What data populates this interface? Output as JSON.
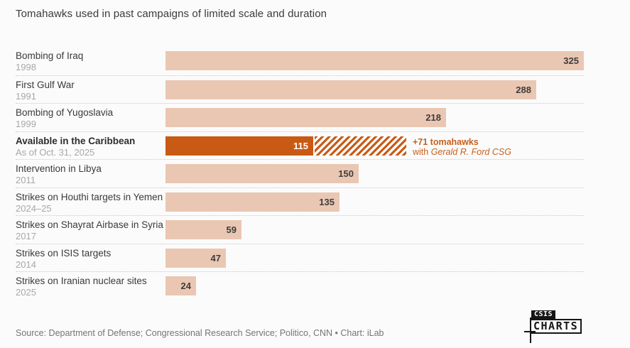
{
  "title": "Tomahawks used in past campaigns of limited scale and duration",
  "chart_data": {
    "type": "bar",
    "orientation": "horizontal",
    "xlim": [
      0,
      325
    ],
    "grid": "dotted row separators",
    "bar_color": "#eac7b2",
    "highlight_color": "#c95a14",
    "value_label_position": "inside-right",
    "rows": [
      {
        "label": "Bombing of Iraq",
        "sublabel": "1998",
        "value": 325
      },
      {
        "label": "First Gulf War",
        "sublabel": "1991",
        "value": 288
      },
      {
        "label": "Bombing of Yugoslavia",
        "sublabel": "1999",
        "value": 218
      },
      {
        "label": "Available in the Caribbean",
        "sublabel": "As of Oct. 31, 2025",
        "value": 115,
        "highlight": true,
        "extension": {
          "value": 71,
          "style": "diagonal-hatch",
          "label_line1": "+71 tomahawks",
          "label_line2_prefix": "with ",
          "label_line2_italic": "Gerald R. Ford CSG"
        }
      },
      {
        "label": "Intervention in Libya",
        "sublabel": "2011",
        "value": 150
      },
      {
        "label": "Strikes on Houthi targets in Yemen",
        "sublabel": "2024–25",
        "value": 135
      },
      {
        "label": "Strikes on Shayrat Airbase in Syria",
        "sublabel": "2017",
        "value": 59
      },
      {
        "label": "Strikes on ISIS targets",
        "sublabel": "2014",
        "value": 47
      },
      {
        "label": "Strikes on Iranian nuclear sites",
        "sublabel": "2025",
        "value": 24
      }
    ]
  },
  "footer": {
    "source": "Source: Department of Defense; Congressional Research Service; Politico, CNN • Chart: iLab",
    "logo_top": "CSIS",
    "logo_bottom": "CHARTS"
  }
}
